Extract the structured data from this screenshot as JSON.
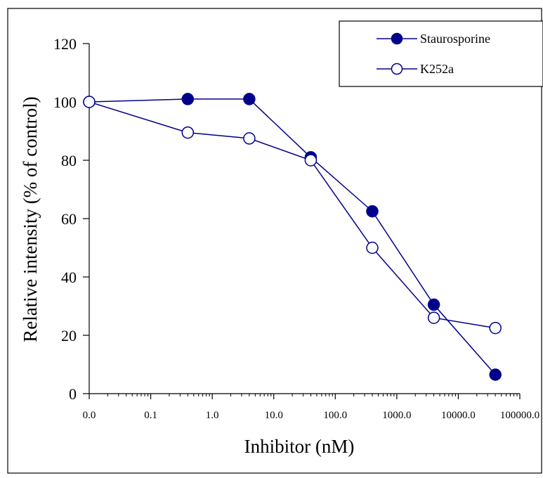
{
  "chart_data": {
    "type": "line",
    "title": "",
    "xlabel": "Inhibitor (nM)",
    "ylabel": "Relative intensity (% of control)",
    "xscale": "log",
    "xlim": [
      0.01,
      100000
    ],
    "ylim": [
      0,
      120
    ],
    "yticks": [
      0,
      20,
      40,
      60,
      80,
      100,
      120
    ],
    "xtick_labels": [
      "0.0",
      "0.1",
      "1.0",
      "10.0",
      "100.0",
      "1000.0",
      "10000.0",
      "100000.0"
    ],
    "grid": false,
    "legend_position": "top-right",
    "series": [
      {
        "name": "Staurosporine",
        "marker": "filled-circle",
        "x": [
          "0.0",
          0.4,
          4,
          40,
          400,
          4000,
          40000
        ],
        "y": [
          100,
          101,
          101,
          81,
          62.5,
          30.5,
          6.5
        ]
      },
      {
        "name": "K252a",
        "marker": "open-circle",
        "x": [
          "0.0",
          0.4,
          4,
          40,
          400,
          4000,
          40000
        ],
        "y": [
          100,
          89.5,
          87.5,
          80,
          50,
          26,
          22.5
        ]
      }
    ],
    "line_color": "#00008b",
    "marker_color": "#00008b"
  }
}
